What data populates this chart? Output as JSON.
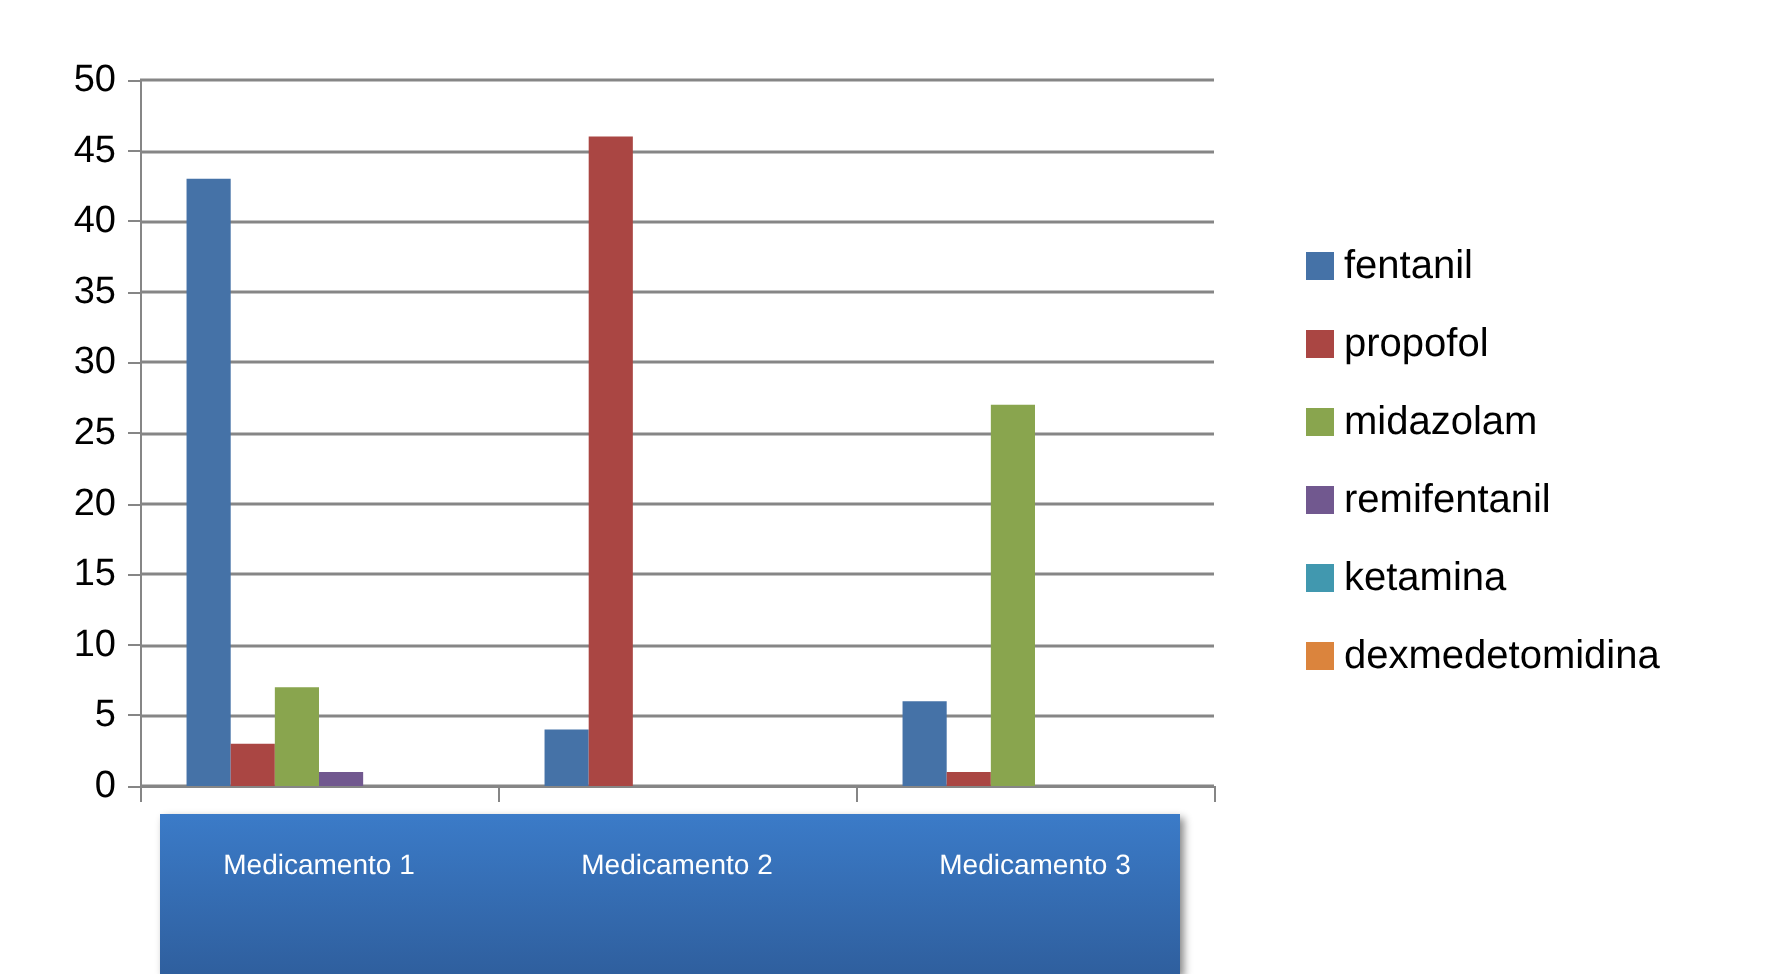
{
  "chart_data": {
    "type": "bar",
    "categories": [
      "Medicamento 1",
      "Medicamento 2",
      "Medicamento 3"
    ],
    "series": [
      {
        "name": "fentanil",
        "color": "#4572a7",
        "values": [
          43,
          4,
          6
        ]
      },
      {
        "name": "propofol",
        "color": "#aa4643",
        "values": [
          3,
          46,
          1
        ]
      },
      {
        "name": "midazolam",
        "color": "#89a54e",
        "values": [
          7,
          0,
          27
        ]
      },
      {
        "name": "remifentanil",
        "color": "#71588f",
        "values": [
          1,
          0,
          0
        ]
      },
      {
        "name": "ketamina",
        "color": "#4198af",
        "values": [
          0,
          0,
          0
        ]
      },
      {
        "name": "dexmedetomidina",
        "color": "#db843d",
        "values": [
          0,
          0,
          0
        ]
      }
    ],
    "ylim": [
      0,
      50
    ],
    "yticks": [
      0,
      5,
      10,
      15,
      20,
      25,
      30,
      35,
      40,
      45,
      50
    ],
    "grid": "y",
    "legend": "right"
  }
}
